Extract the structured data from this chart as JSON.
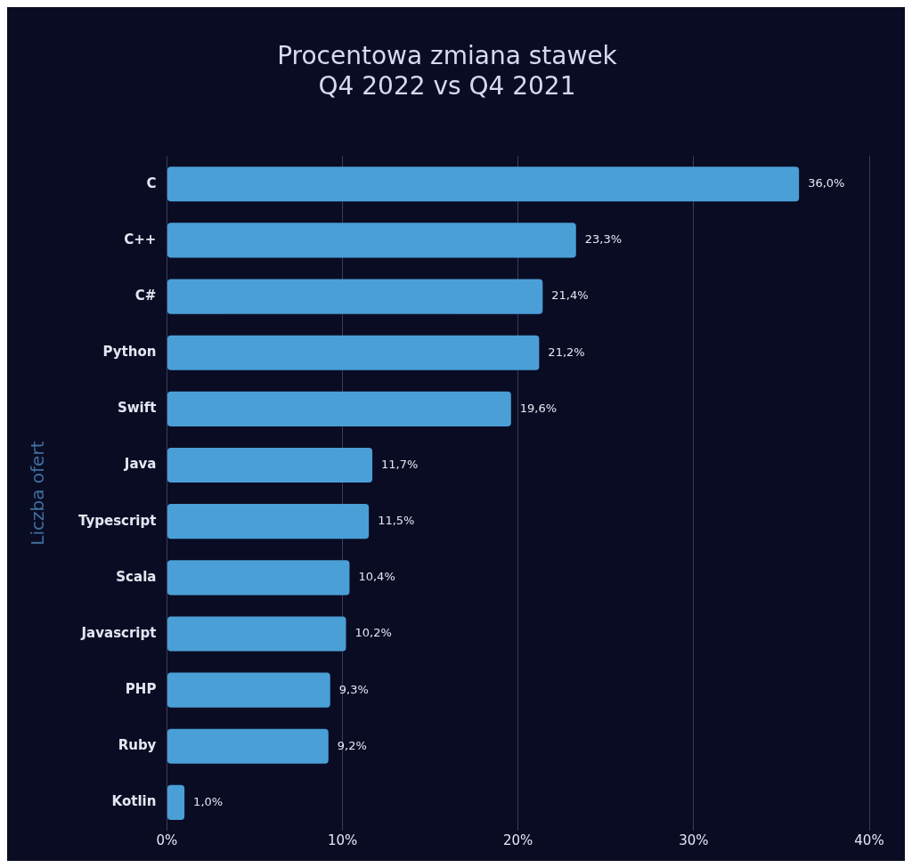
{
  "chart_data": {
    "type": "bar",
    "orientation": "horizontal",
    "title": "Procentowa zmiana stawek\nQ4 2022 vs Q4 2021",
    "ylabel": "Liczba ofert",
    "categories": [
      "C",
      "C++",
      "C#",
      "Python",
      "Swift",
      "Java",
      "Typescript",
      "Scala",
      "Javascript",
      "PHP",
      "Ruby",
      "Kotlin"
    ],
    "values": [
      36.0,
      23.3,
      21.4,
      21.2,
      19.6,
      11.7,
      11.5,
      10.4,
      10.2,
      9.3,
      9.2,
      1.0
    ],
    "value_labels": [
      "36,0%",
      "23,3%",
      "21,4%",
      "21,2%",
      "19,6%",
      "11,7%",
      "11,5%",
      "10,4%",
      "10,2%",
      "9,3%",
      "9,2%",
      "1,0%"
    ],
    "color": "#4a9fd6",
    "xlim": [
      0,
      40
    ],
    "xticks": [
      {
        "value": 0,
        "label": "0%"
      },
      {
        "value": 10,
        "label": "10%"
      },
      {
        "value": 20,
        "label": "20%"
      },
      {
        "value": 30,
        "label": "30%"
      },
      {
        "value": 40,
        "label": "40%"
      }
    ],
    "grid": "x",
    "legend": false
  }
}
